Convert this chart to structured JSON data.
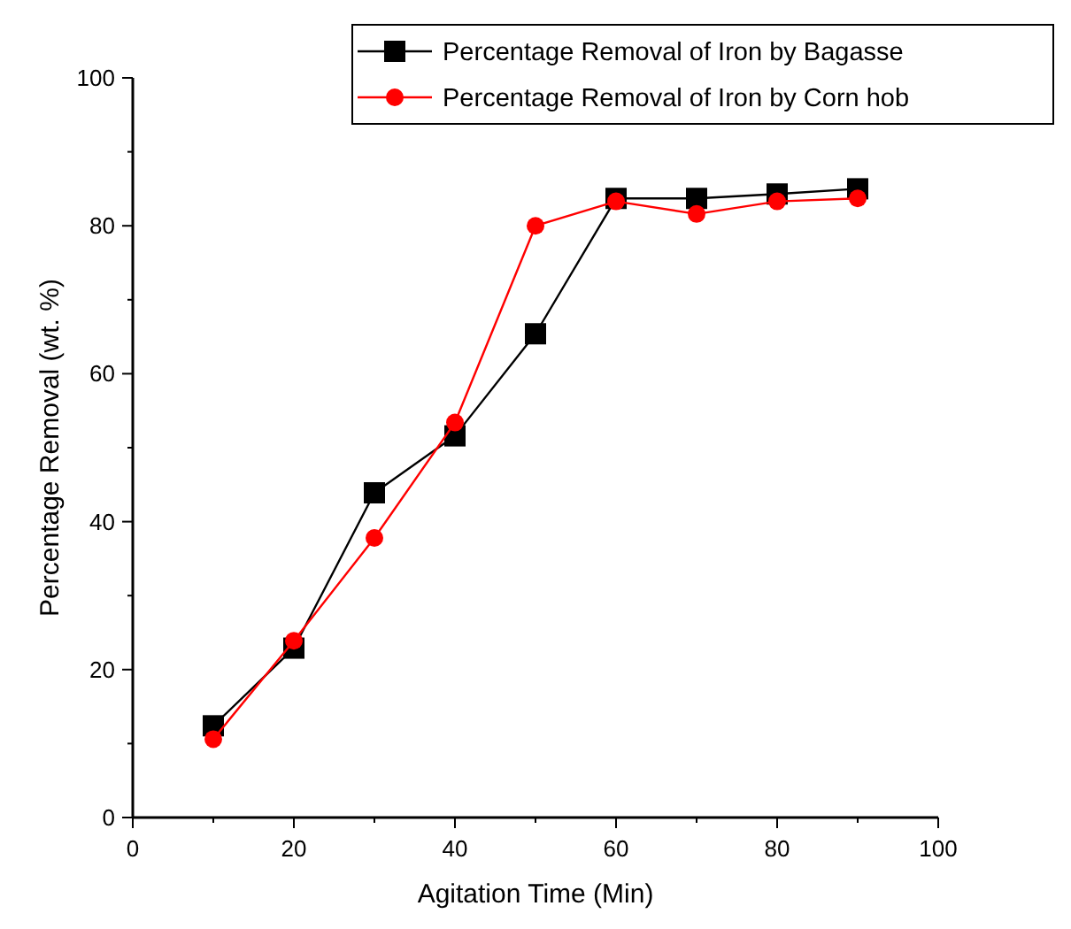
{
  "chart_data": {
    "type": "line",
    "xlabel": "Agitation Time (Min)",
    "ylabel": "Percentage Removal (wt. %)",
    "x": [
      10,
      20,
      30,
      40,
      50,
      60,
      70,
      80,
      90
    ],
    "series": [
      {
        "name": "Percentage Removal of Iron by Bagasse",
        "color": "#000000",
        "marker": "square",
        "values": [
          12.4,
          22.9,
          43.9,
          51.6,
          65.4,
          83.7,
          83.7,
          84.3,
          85
        ]
      },
      {
        "name": "Percentage Removal of Iron by Corn hob",
        "color": "#ff0000",
        "marker": "circle",
        "values": [
          10.6,
          23.9,
          37.8,
          53.4,
          80,
          83.3,
          81.6,
          83.3,
          83.7
        ]
      }
    ],
    "xlim": [
      0,
      100
    ],
    "xticks": [
      0,
      20,
      40,
      60,
      80,
      100
    ],
    "ylim": [
      0,
      100
    ],
    "yticks": [
      0,
      20,
      40,
      60,
      80,
      100
    ],
    "grid": false,
    "legend": "top right",
    "line_style": "solid"
  }
}
